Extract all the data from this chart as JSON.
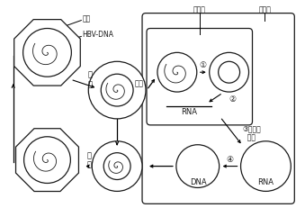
{
  "bg_color": "#ffffff",
  "line_color": "#1a1a1a",
  "labels": {
    "yike": "衣壳",
    "hbvdna": "HBV-DNA",
    "chuanru": "穿\n入",
    "tuoke": "脱壳",
    "RNA_nucleus": "RNA",
    "step3": "③合成核\n  衣壳",
    "step4": "④",
    "DNA_label": "DNA",
    "RNA_label": "RNA",
    "release": "释\n放",
    "xijiaohuo": "细胞核",
    "xijiaozhi": "细胞质",
    "step1": "①",
    "step2": "②"
  },
  "figsize": [
    3.29,
    2.31
  ],
  "dpi": 100
}
